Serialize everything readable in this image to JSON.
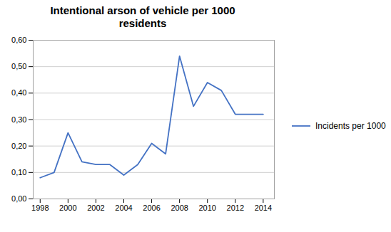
{
  "chart_data": {
    "type": "line",
    "title": "Intentional arson of vehicle per 1000\nresidents",
    "x": [
      1998,
      1999,
      2000,
      2001,
      2002,
      2003,
      2004,
      2005,
      2006,
      2007,
      2008,
      2009,
      2010,
      2011,
      2012,
      2013,
      2014
    ],
    "series": [
      {
        "name": "Incidents per 1000",
        "color": "#4472C4",
        "values": [
          0.08,
          0.1,
          0.25,
          0.14,
          0.13,
          0.13,
          0.09,
          0.13,
          0.21,
          0.17,
          0.54,
          0.35,
          0.44,
          0.41,
          0.32,
          0.32,
          0.32
        ]
      }
    ],
    "xlim": [
      1997.5,
      2014.8
    ],
    "xticks": [
      1998,
      2000,
      2002,
      2004,
      2006,
      2008,
      2010,
      2012,
      2014
    ],
    "ylim": [
      0.0,
      0.6
    ],
    "yticks": [
      {
        "value": 0.0,
        "label": "0,00"
      },
      {
        "value": 0.1,
        "label": "0,10"
      },
      {
        "value": 0.2,
        "label": "0,20"
      },
      {
        "value": 0.3,
        "label": "0,30"
      },
      {
        "value": 0.4,
        "label": "0,40"
      },
      {
        "value": 0.5,
        "label": "0,50"
      },
      {
        "value": 0.6,
        "label": "0,60"
      }
    ],
    "grid": "y",
    "legend": "right"
  }
}
